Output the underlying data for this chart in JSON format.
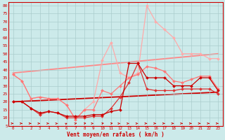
{
  "background_color": "#cceaea",
  "grid_color": "#aacccc",
  "xlabel": "Vent moyen/en rafales ( km/h )",
  "xlabel_color": "#cc0000",
  "ylabel_ticks": [
    5,
    10,
    15,
    20,
    25,
    30,
    35,
    40,
    45,
    50,
    55,
    60,
    65,
    70,
    75,
    80
  ],
  "xlim": [
    -0.5,
    23.5
  ],
  "ylim": [
    5,
    82
  ],
  "xticks": [
    0,
    1,
    2,
    3,
    4,
    5,
    6,
    7,
    8,
    9,
    10,
    11,
    12,
    13,
    14,
    15,
    16,
    17,
    18,
    19,
    20,
    21,
    22,
    23
  ],
  "lines": [
    {
      "x": [
        0,
        1,
        2,
        3,
        4,
        5,
        6,
        7,
        8,
        9,
        10,
        11,
        12,
        13,
        14,
        15,
        16,
        17,
        18,
        19,
        20,
        21,
        22,
        23
      ],
      "y": [
        20,
        20,
        16,
        13,
        14,
        13,
        11,
        11,
        11,
        12,
        12,
        14,
        15,
        44,
        44,
        35,
        35,
        35,
        30,
        30,
        30,
        35,
        35,
        27
      ],
      "color": "#cc0000",
      "lw": 0.9,
      "marker": "D",
      "ms": 2.0,
      "zorder": 5
    },
    {
      "x": [
        0,
        1,
        2,
        3,
        4,
        5,
        6,
        7,
        8,
        9,
        10,
        11,
        12,
        13,
        14,
        15,
        16,
        17,
        18,
        19,
        20,
        21,
        22,
        23
      ],
      "y": [
        20,
        20,
        16,
        12,
        14,
        13,
        10,
        10,
        10,
        11,
        11,
        16,
        23,
        32,
        44,
        28,
        27,
        27,
        27,
        28,
        28,
        28,
        28,
        25
      ],
      "color": "#dd3333",
      "lw": 0.9,
      "marker": "D",
      "ms": 2.0,
      "zorder": 4
    },
    {
      "x": [
        0,
        1,
        2,
        3,
        4,
        5,
        6,
        7,
        8,
        9,
        10,
        11,
        12,
        13,
        14,
        15,
        16,
        17,
        18,
        19,
        20,
        21,
        22,
        23
      ],
      "y": [
        37,
        33,
        22,
        23,
        22,
        22,
        18,
        9,
        15,
        15,
        27,
        25,
        30,
        35,
        37,
        42,
        41,
        39,
        33,
        32,
        34,
        36,
        36,
        28
      ],
      "color": "#ff7777",
      "lw": 0.9,
      "marker": "D",
      "ms": 2.0,
      "zorder": 3
    },
    {
      "x": [
        0,
        1,
        2,
        3,
        4,
        5,
        6,
        7,
        8,
        9,
        10,
        11,
        12,
        13,
        14,
        15,
        16,
        17,
        18,
        19,
        20,
        21,
        22,
        23
      ],
      "y": [
        37,
        33,
        22,
        23,
        22,
        22,
        18,
        9,
        15,
        20,
        46,
        57,
        38,
        35,
        38,
        80,
        70,
        65,
        60,
        50,
        50,
        50,
        47,
        47
      ],
      "color": "#ffaaaa",
      "lw": 0.9,
      "marker": "D",
      "ms": 2.0,
      "zorder": 2
    },
    {
      "x": [
        0,
        23
      ],
      "y": [
        20,
        26
      ],
      "color": "#cc0000",
      "lw": 1.3,
      "marker": null,
      "ms": 0,
      "zorder": 1,
      "linestyle": "-"
    },
    {
      "x": [
        0,
        23
      ],
      "y": [
        38,
        50
      ],
      "color": "#ff8888",
      "lw": 1.3,
      "marker": null,
      "ms": 0,
      "zorder": 1,
      "linestyle": "-"
    }
  ],
  "arrow_angles": [
    0,
    0,
    0,
    5,
    5,
    20,
    70,
    55,
    30,
    10,
    35,
    35,
    20,
    15,
    15,
    0,
    0,
    0,
    0,
    0,
    0,
    0,
    0,
    0
  ],
  "wind_arrows_color": "#cc0000"
}
